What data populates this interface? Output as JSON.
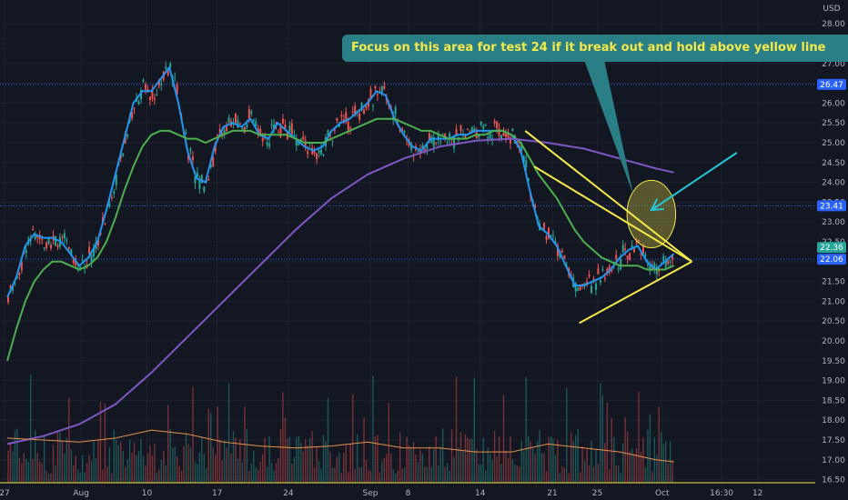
{
  "chart_data": {
    "type": "candlestick",
    "currency": "USD",
    "y_ticks": [
      "28.00",
      "27.50",
      "27.00",
      "26.50",
      "26.00",
      "25.50",
      "25.00",
      "24.50",
      "24.00",
      "23.50",
      "23.00",
      "22.50",
      "22.00",
      "21.50",
      "21.00",
      "20.50",
      "20.00",
      "19.50",
      "19.00",
      "18.50",
      "18.00",
      "17.50",
      "17.00",
      "16.50"
    ],
    "ylim": [
      16.4,
      28.6
    ],
    "x_ticks": [
      "27",
      "Aug",
      "10",
      "17",
      "24",
      "Sep",
      "8",
      "14",
      "21",
      "25",
      "Oct",
      "16:30",
      "12"
    ],
    "price_badges": [
      {
        "value": 26.47,
        "label": "26.47",
        "color": "#2962ff"
      },
      {
        "value": 23.41,
        "label": "23.41",
        "color": "#2962ff"
      },
      {
        "value": 22.36,
        "label": "22.36",
        "color": "#26a69a"
      },
      {
        "value": 22.06,
        "label": "22.06",
        "color": "#2962ff"
      }
    ],
    "horizontal_lines": [
      26.47,
      23.41,
      22.06
    ],
    "series": [
      {
        "kind": "ema_fast",
        "color": "#2196f3",
        "points": [
          [
            0,
            21.1
          ],
          [
            1,
            21.6
          ],
          [
            2,
            22.4
          ],
          [
            3,
            22.7
          ],
          [
            4,
            22.6
          ],
          [
            5,
            22.6
          ],
          [
            6,
            22.5
          ],
          [
            7,
            22.2
          ],
          [
            8,
            21.9
          ],
          [
            9,
            22.1
          ],
          [
            10,
            22.5
          ],
          [
            11,
            23.3
          ],
          [
            12,
            24.2
          ],
          [
            13,
            25.1
          ],
          [
            14,
            26.0
          ],
          [
            15,
            26.3
          ],
          [
            16,
            26.3
          ],
          [
            17,
            26.6
          ],
          [
            18,
            26.9
          ],
          [
            19,
            26.0
          ],
          [
            20,
            24.8
          ],
          [
            21,
            24.1
          ],
          [
            22,
            24.0
          ],
          [
            23,
            24.9
          ],
          [
            24,
            25.4
          ],
          [
            25,
            25.5
          ],
          [
            26,
            25.4
          ],
          [
            27,
            25.6
          ],
          [
            28,
            25.2
          ],
          [
            29,
            25.1
          ],
          [
            30,
            25.5
          ],
          [
            31,
            25.3
          ],
          [
            32,
            25.1
          ],
          [
            33,
            24.9
          ],
          [
            34,
            24.8
          ],
          [
            35,
            24.9
          ],
          [
            36,
            25.3
          ],
          [
            37,
            25.5
          ],
          [
            38,
            25.6
          ],
          [
            39,
            25.8
          ],
          [
            40,
            26.0
          ],
          [
            41,
            26.3
          ],
          [
            42,
            26.2
          ],
          [
            43,
            25.6
          ],
          [
            44,
            25.2
          ],
          [
            45,
            24.9
          ],
          [
            46,
            24.8
          ],
          [
            47,
            25.1
          ],
          [
            48,
            25.1
          ],
          [
            49,
            25.1
          ],
          [
            50,
            25.2
          ],
          [
            51,
            25.2
          ],
          [
            52,
            25.3
          ],
          [
            53,
            25.3
          ],
          [
            54,
            25.3
          ],
          [
            55,
            25.3
          ],
          [
            56,
            25.2
          ],
          [
            57,
            24.8
          ],
          [
            58,
            23.8
          ],
          [
            59,
            22.9
          ],
          [
            60,
            22.7
          ],
          [
            61,
            22.4
          ],
          [
            62,
            21.9
          ],
          [
            63,
            21.4
          ],
          [
            64,
            21.4
          ],
          [
            65,
            21.5
          ],
          [
            66,
            21.6
          ],
          [
            67,
            21.8
          ],
          [
            68,
            22.1
          ],
          [
            69,
            22.3
          ],
          [
            70,
            22.4
          ],
          [
            71,
            22.0
          ],
          [
            72,
            21.8
          ],
          [
            73,
            22.0
          ],
          [
            74,
            22.2
          ]
        ]
      },
      {
        "kind": "ema_mid",
        "color": "#4caf50",
        "points": [
          [
            0,
            19.5
          ],
          [
            1,
            20.3
          ],
          [
            2,
            21.0
          ],
          [
            3,
            21.5
          ],
          [
            4,
            21.8
          ],
          [
            5,
            22.0
          ],
          [
            6,
            22.0
          ],
          [
            7,
            21.9
          ],
          [
            8,
            21.8
          ],
          [
            9,
            21.9
          ],
          [
            10,
            22.1
          ],
          [
            11,
            22.5
          ],
          [
            12,
            23.1
          ],
          [
            13,
            23.8
          ],
          [
            14,
            24.4
          ],
          [
            15,
            24.9
          ],
          [
            16,
            25.2
          ],
          [
            17,
            25.3
          ],
          [
            18,
            25.3
          ],
          [
            19,
            25.2
          ],
          [
            20,
            25.1
          ],
          [
            21,
            25.1
          ],
          [
            22,
            25.0
          ],
          [
            23,
            25.1
          ],
          [
            24,
            25.2
          ],
          [
            25,
            25.3
          ],
          [
            26,
            25.3
          ],
          [
            27,
            25.3
          ],
          [
            28,
            25.2
          ],
          [
            29,
            25.2
          ],
          [
            30,
            25.2
          ],
          [
            31,
            25.2
          ],
          [
            32,
            25.1
          ],
          [
            33,
            25.0
          ],
          [
            34,
            25.0
          ],
          [
            35,
            25.0
          ],
          [
            36,
            25.1
          ],
          [
            37,
            25.2
          ],
          [
            38,
            25.3
          ],
          [
            39,
            25.4
          ],
          [
            40,
            25.5
          ],
          [
            41,
            25.6
          ],
          [
            42,
            25.6
          ],
          [
            43,
            25.6
          ],
          [
            44,
            25.5
          ],
          [
            45,
            25.4
          ],
          [
            46,
            25.3
          ],
          [
            47,
            25.3
          ],
          [
            48,
            25.2
          ],
          [
            49,
            25.1
          ],
          [
            50,
            25.1
          ],
          [
            51,
            25.1
          ],
          [
            52,
            25.2
          ],
          [
            53,
            25.2
          ],
          [
            54,
            25.3
          ],
          [
            55,
            25.3
          ],
          [
            56,
            25.2
          ],
          [
            57,
            25.0
          ],
          [
            58,
            24.6
          ],
          [
            59,
            24.2
          ],
          [
            60,
            23.9
          ],
          [
            61,
            23.6
          ],
          [
            62,
            23.2
          ],
          [
            63,
            22.8
          ],
          [
            64,
            22.5
          ],
          [
            65,
            22.3
          ],
          [
            66,
            22.1
          ],
          [
            67,
            22.0
          ],
          [
            68,
            21.9
          ],
          [
            69,
            21.9
          ],
          [
            70,
            21.9
          ],
          [
            71,
            21.8
          ],
          [
            72,
            21.8
          ],
          [
            73,
            21.8
          ],
          [
            74,
            21.9
          ]
        ]
      },
      {
        "kind": "ema_slow",
        "color": "#7e57c2",
        "points": [
          [
            0,
            17.4
          ],
          [
            4,
            17.6
          ],
          [
            8,
            17.9
          ],
          [
            12,
            18.4
          ],
          [
            16,
            19.2
          ],
          [
            20,
            20.1
          ],
          [
            24,
            21.0
          ],
          [
            28,
            21.9
          ],
          [
            32,
            22.8
          ],
          [
            36,
            23.6
          ],
          [
            40,
            24.2
          ],
          [
            44,
            24.6
          ],
          [
            48,
            24.9
          ],
          [
            52,
            25.05
          ],
          [
            56,
            25.1
          ],
          [
            60,
            25.0
          ],
          [
            64,
            24.85
          ],
          [
            68,
            24.6
          ],
          [
            72,
            24.35
          ],
          [
            74,
            24.25
          ]
        ]
      },
      {
        "kind": "volume_ma",
        "color": "#e8904a",
        "points": [
          [
            0,
            17.55
          ],
          [
            4,
            17.5
          ],
          [
            8,
            17.45
          ],
          [
            12,
            17.55
          ],
          [
            16,
            17.75
          ],
          [
            20,
            17.65
          ],
          [
            24,
            17.45
          ],
          [
            28,
            17.35
          ],
          [
            32,
            17.3
          ],
          [
            36,
            17.35
          ],
          [
            40,
            17.45
          ],
          [
            44,
            17.3
          ],
          [
            48,
            17.3
          ],
          [
            52,
            17.2
          ],
          [
            56,
            17.2
          ],
          [
            60,
            17.4
          ],
          [
            64,
            17.3
          ],
          [
            68,
            17.2
          ],
          [
            72,
            17.0
          ],
          [
            74,
            16.95
          ]
        ]
      }
    ],
    "drawings": [
      {
        "kind": "trendline",
        "color": "#f5e94a",
        "from": [
          57.5,
          25.3
        ],
        "to": [
          76.0,
          22.0
        ]
      },
      {
        "kind": "trendline",
        "color": "#f5e94a",
        "from": [
          58.5,
          24.4
        ],
        "to": [
          76.0,
          22.0
        ]
      },
      {
        "kind": "trendline",
        "color": "#f5e94a",
        "from": [
          63.5,
          20.45
        ],
        "to": [
          76.0,
          22.0
        ]
      },
      {
        "kind": "ellipse",
        "color": "#f5e94a",
        "center": [
          71.5,
          23.2
        ],
        "radius": [
          2.7,
          0.85
        ]
      },
      {
        "kind": "arrow",
        "color": "#26c6da",
        "from": [
          81.0,
          24.75
        ],
        "to": [
          71.5,
          23.3
        ]
      }
    ],
    "annotation": "Focus on this area for test 24 if it break out and hold above  yellow line"
  }
}
